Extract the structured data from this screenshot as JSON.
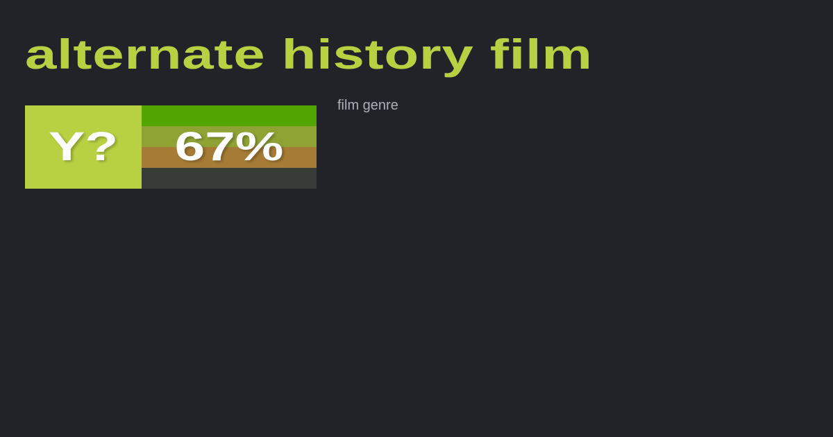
{
  "title": "alternate history film",
  "subtitle": "film genre",
  "badge": {
    "label": "Y?",
    "percent_text": "67%",
    "percent": 67,
    "colors": {
      "label_bg": "#b8d143",
      "bands": [
        "#52a500",
        "#8fa335",
        "#a57b35",
        "#383c37"
      ]
    }
  }
}
